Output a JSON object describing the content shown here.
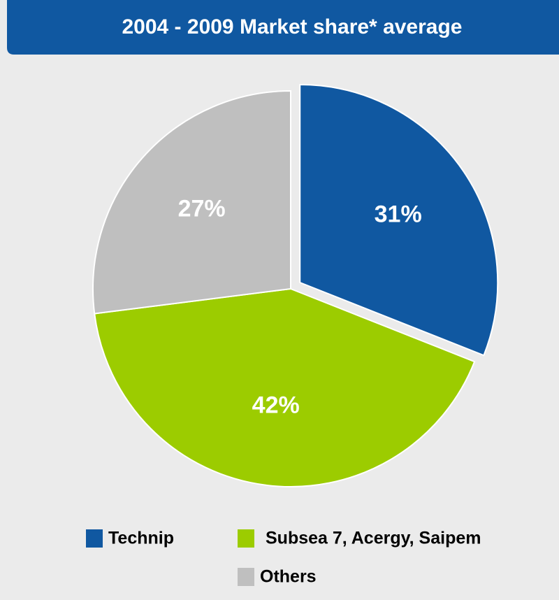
{
  "chart_data": {
    "type": "pie",
    "title": "2004 - 2009 Market share* average",
    "categories": [
      "Technip",
      "Subsea 7, Acergy, Saipem",
      "Others"
    ],
    "values": [
      31,
      42,
      27
    ],
    "value_labels": [
      "31%",
      "42%",
      "27%"
    ],
    "colors": [
      "#1058a1",
      "#9ccc00",
      "#bfbfbf"
    ]
  }
}
